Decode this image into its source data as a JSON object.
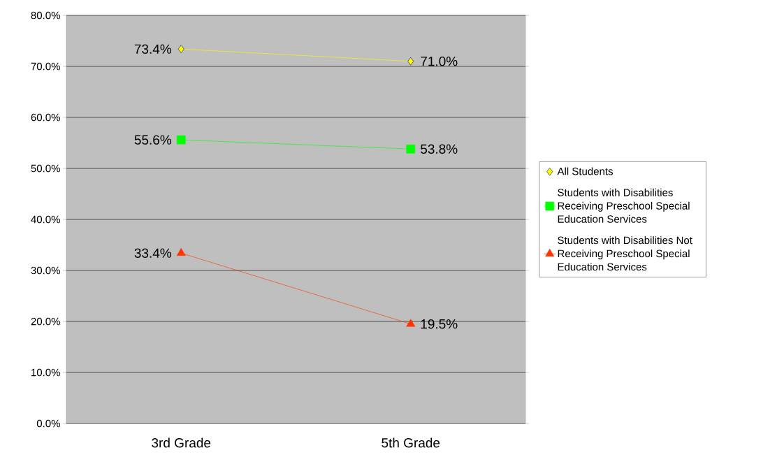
{
  "chart_data": {
    "type": "line",
    "categories": [
      "3rd Grade",
      "5th Grade"
    ],
    "series": [
      {
        "name": "All Students",
        "color": "#ffff00",
        "marker": "diamond",
        "values": [
          73.4,
          71.0
        ],
        "value_labels": [
          "73.4%",
          "71.0%"
        ]
      },
      {
        "name": "Students with Disabilities Receiving Preschool Special Education Services",
        "color": "#00ff00",
        "marker": "square",
        "values": [
          55.6,
          53.8
        ],
        "value_labels": [
          "55.6%",
          "53.8%"
        ]
      },
      {
        "name": "Students with Disabilities Not Receiving Preschool Special Education Services",
        "color": "#ff3300",
        "marker": "triangle",
        "values": [
          33.4,
          19.5
        ],
        "value_labels": [
          "33.4%",
          "19.5%"
        ]
      }
    ],
    "ylim": [
      0,
      80
    ],
    "yticks": [
      {
        "value": 0,
        "label": "0.0%"
      },
      {
        "value": 10,
        "label": "10.0%"
      },
      {
        "value": 20,
        "label": "20.0%"
      },
      {
        "value": 30,
        "label": "30.0%"
      },
      {
        "value": 40,
        "label": "40.0%"
      },
      {
        "value": 50,
        "label": "50.0%"
      },
      {
        "value": 60,
        "label": "60.0%"
      },
      {
        "value": 70,
        "label": "70.0%"
      },
      {
        "value": 80,
        "label": "80.0%"
      }
    ],
    "grid": "y",
    "legend": "right",
    "line_style": "solid"
  }
}
